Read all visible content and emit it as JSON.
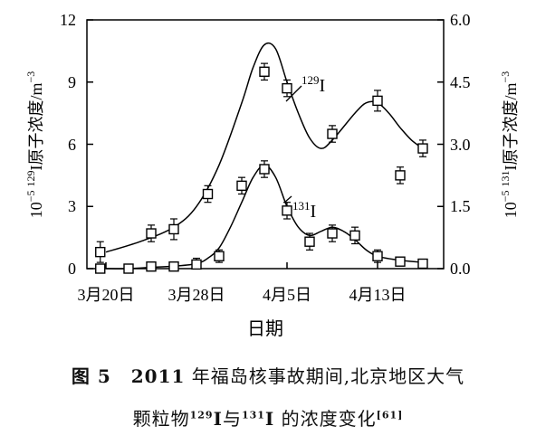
{
  "chart_data": {
    "type": "scatter",
    "xlabel": "日期",
    "x_ticks": [
      "3月20日",
      "3月28日",
      "4月5日",
      "4月13日"
    ],
    "x_tick_days": [
      0,
      8,
      16,
      24
    ],
    "x_unit": "days after 3月20日",
    "y_left": {
      "label_prefix": "10",
      "label_exp": "−5",
      "label_mass": "129",
      "label_main": "I原子浓度/m",
      "label_unit_exp": "−3",
      "ticks": [
        "0",
        "3",
        "6",
        "9",
        "12"
      ],
      "ylim": [
        0,
        12
      ]
    },
    "y_right": {
      "label_prefix": "10",
      "label_exp": "−5",
      "label_mass": "131",
      "label_main": "I原子浓度/m",
      "label_unit_exp": "−3",
      "ticks": [
        "0.0",
        "1.5",
        "3.0",
        "4.5",
        "6.0"
      ],
      "ylim": [
        0,
        6
      ]
    },
    "series": [
      {
        "name_mass": "129",
        "name_el": "I",
        "axis": "left",
        "x": [
          -0.5,
          4,
          6,
          9,
          14,
          16,
          20,
          24,
          26,
          28
        ],
        "y": [
          0.8,
          1.7,
          1.9,
          3.6,
          9.5,
          8.7,
          6.5,
          8.1,
          4.5,
          5.8
        ],
        "err": [
          0.5,
          0.4,
          0.5,
          0.4,
          0.4,
          0.4,
          0.4,
          0.5,
          0.4,
          0.4
        ],
        "curve_x": [
          0,
          3,
          6,
          8,
          10,
          12,
          13,
          14,
          15,
          16,
          17,
          18,
          19,
          20,
          22,
          23,
          24,
          25,
          26,
          27,
          28
        ],
        "curve_y": [
          0.8,
          1.3,
          2.0,
          3.0,
          5.0,
          8.0,
          9.7,
          10.8,
          10.6,
          9.0,
          7.5,
          6.3,
          5.8,
          6.2,
          7.5,
          8.0,
          8.0,
          7.5,
          6.8,
          6.2,
          5.8
        ]
      },
      {
        "name_mass": "131",
        "name_el": "I",
        "axis": "right",
        "x": [
          -0.5,
          2,
          4,
          6,
          8,
          10,
          12,
          14,
          16,
          18,
          20,
          22,
          24,
          26,
          28
        ],
        "y": [
          0.0,
          0.0,
          0.05,
          0.05,
          0.1,
          0.3,
          2.0,
          2.4,
          1.4,
          0.65,
          0.85,
          0.8,
          0.3,
          0.17,
          0.12
        ],
        "err": [
          0.1,
          0.08,
          0.08,
          0.1,
          0.15,
          0.15,
          0.2,
          0.2,
          0.2,
          0.2,
          0.2,
          0.2,
          0.15,
          0.1,
          0.1
        ],
        "curve_x": [
          0,
          2,
          4,
          6,
          8,
          9,
          10,
          11,
          12,
          13,
          14,
          15,
          16,
          17,
          18,
          19,
          20,
          21,
          22,
          23,
          24,
          26,
          28
        ],
        "curve_y": [
          0.0,
          0.0,
          0.03,
          0.06,
          0.12,
          0.25,
          0.5,
          1.0,
          1.6,
          2.2,
          2.5,
          2.2,
          1.5,
          1.0,
          0.8,
          0.9,
          1.0,
          0.9,
          0.7,
          0.45,
          0.3,
          0.2,
          0.15
        ]
      }
    ]
  },
  "caption": {
    "line1_num": "图 5",
    "line1_text_bold": "2011",
    "line1_text": " 年福岛核事故期间,北京地区大气",
    "line2_text_a": "颗粒物",
    "line2_sup_a": "129",
    "line2_el_a": "I",
    "line2_mid": "与",
    "line2_sup_b": "131",
    "line2_el_b": "I",
    "line2_text_b": " 的浓度变化",
    "line2_ref": "[61]"
  }
}
